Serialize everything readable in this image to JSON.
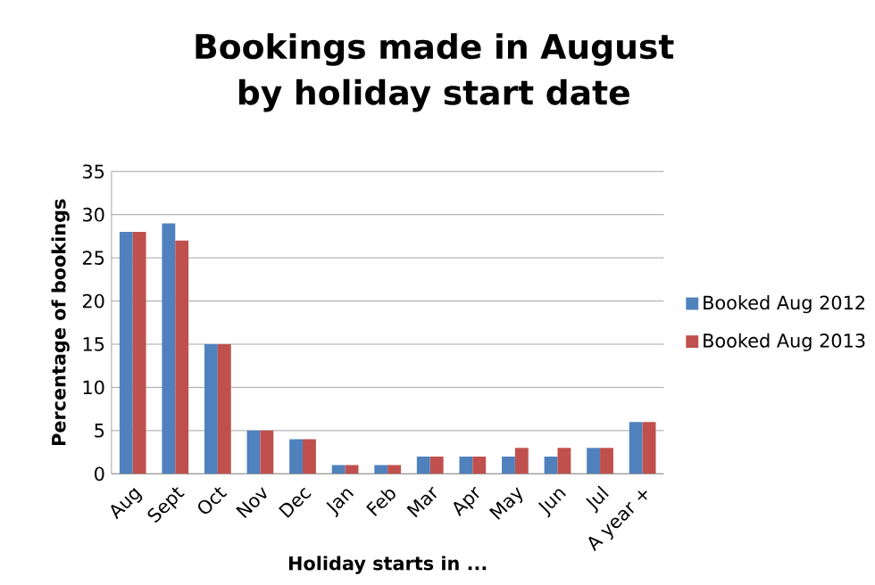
{
  "chart_data": {
    "type": "bar",
    "title": "Bookings made in August by holiday start date",
    "xlabel": "Holiday starts in ...",
    "ylabel": "Percentage of bookings",
    "categories": [
      "Aug",
      "Sept",
      "Oct",
      "Nov",
      "Dec",
      "Jan",
      "Feb",
      "Mar",
      "Apr",
      "May",
      "Jun",
      "Jul",
      "A year +"
    ],
    "series": [
      {
        "name": "Booked Aug 2012",
        "color": "#4f81bd",
        "values": [
          28,
          29,
          15,
          5,
          4,
          1,
          1,
          2,
          2,
          2,
          2,
          3,
          6
        ]
      },
      {
        "name": "Booked Aug 2013",
        "color": "#c0504d",
        "values": [
          28,
          27,
          15,
          5,
          4,
          1,
          1,
          2,
          2,
          3,
          3,
          3,
          6
        ]
      }
    ],
    "ylim": [
      0,
      35
    ],
    "yticks": [
      0,
      5,
      10,
      15,
      20,
      25,
      30,
      35
    ],
    "grid": "y",
    "legend": "right"
  }
}
